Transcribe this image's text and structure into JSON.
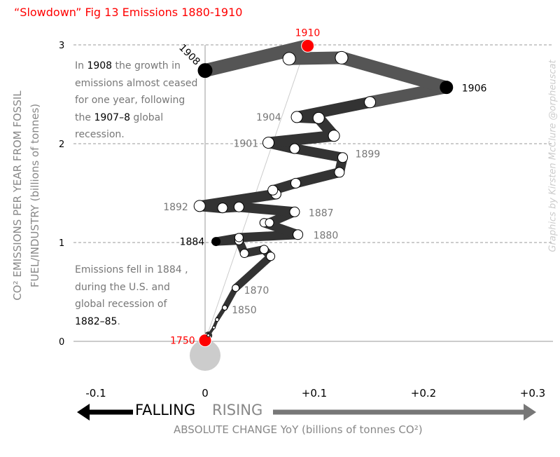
{
  "title": "“Slowdown” Fig 13 Emissions 1880-1910",
  "credit": "Graphics by Kirsten McClure @orpheuscat",
  "annotations": {
    "a1": [
      "In ",
      "1908",
      " the growth in",
      "emissions almost ceased",
      "for one year, following",
      "the ",
      "1907–8",
      " global",
      "recession."
    ],
    "a2": [
      "Emissions fell in 1884 ,",
      "during the U.S. and",
      "global recession of",
      "1882–85",
      "."
    ]
  },
  "direction": {
    "falling": "FALLING",
    "rising": "RISING"
  },
  "chart_data": {
    "type": "line",
    "title": "“Slowdown” Fig 13 Emissions 1880-1910",
    "xlabel": "ABSOLUTE CHANGE YoY (billions of tonnes CO²)",
    "ylabel": [
      "CO² EMISSIONS PER YEAR FROM FOSSIL",
      "FUEL/INDUSTRY (billions of tonnes)"
    ],
    "xlim": [
      -0.1,
      0.3
    ],
    "ylim": [
      0,
      3
    ],
    "xticks": [
      {
        "v": -0.1,
        "label": "-0.1"
      },
      {
        "v": 0,
        "label": "0"
      },
      {
        "v": 0.1,
        "label": "+0.1"
      },
      {
        "v": 0.2,
        "label": "+0.2"
      },
      {
        "v": 0.3,
        "label": "+0.3"
      }
    ],
    "yticks": [
      {
        "v": 0,
        "label": "0"
      },
      {
        "v": 1,
        "label": "1"
      },
      {
        "v": 2,
        "label": "2"
      },
      {
        "v": 3,
        "label": "3"
      }
    ],
    "grid": "dashed horizontal",
    "points": [
      {
        "x": 0.0,
        "y": 0.01,
        "label": "1750",
        "fill": "#ff0000",
        "r": 9
      },
      {
        "x": 0.003,
        "y": 0.06,
        "r": 2
      },
      {
        "x": 0.008,
        "y": 0.14,
        "r": 2
      },
      {
        "x": 0.011,
        "y": 0.22,
        "r": 2.5
      },
      {
        "x": 0.018,
        "y": 0.34,
        "label": "1850",
        "r": 3.5
      },
      {
        "x": 0.028,
        "y": 0.54,
        "label": "1870",
        "r": 5
      },
      {
        "x": 0.06,
        "y": 0.86,
        "r": 6
      },
      {
        "x": 0.054,
        "y": 0.93,
        "r": 6
      },
      {
        "x": 0.036,
        "y": 0.89,
        "r": 6
      },
      {
        "x": 0.031,
        "y": 1.02,
        "r": 6
      },
      {
        "x": 0.01,
        "y": 1.01,
        "label": "1884",
        "fill": "#000000",
        "r": 6
      },
      {
        "x": 0.031,
        "y": 1.05,
        "r": 6
      },
      {
        "x": 0.085,
        "y": 1.08,
        "label": "1880",
        "r": 7
      },
      {
        "x": 0.054,
        "y": 1.2,
        "r": 6
      },
      {
        "x": 0.059,
        "y": 1.2,
        "r": 6
      },
      {
        "x": 0.082,
        "y": 1.31,
        "label": "1887",
        "r": 7
      },
      {
        "x": 0.031,
        "y": 1.36,
        "r": 7
      },
      {
        "x": 0.016,
        "y": 1.35,
        "r": 7
      },
      {
        "x": -0.005,
        "y": 1.37,
        "label": "1892",
        "r": 8
      },
      {
        "x": 0.065,
        "y": 1.49,
        "r": 7
      },
      {
        "x": 0.062,
        "y": 1.53,
        "r": 7
      },
      {
        "x": 0.083,
        "y": 1.6,
        "r": 7
      },
      {
        "x": 0.123,
        "y": 1.71,
        "r": 7
      },
      {
        "x": 0.126,
        "y": 1.86,
        "label": "1899",
        "r": 7
      },
      {
        "x": 0.082,
        "y": 1.95,
        "r": 7
      },
      {
        "x": 0.058,
        "y": 2.01,
        "label": "1901",
        "r": 8
      },
      {
        "x": 0.118,
        "y": 2.08,
        "r": 8
      },
      {
        "x": 0.104,
        "y": 2.26,
        "r": 8
      },
      {
        "x": 0.084,
        "y": 2.27,
        "label": "1904",
        "r": 8
      },
      {
        "x": 0.151,
        "y": 2.42,
        "r": 8
      },
      {
        "x": 0.221,
        "y": 2.57,
        "label": "1906",
        "fill": "#000000",
        "r": 9
      },
      {
        "x": 0.125,
        "y": 2.87,
        "r": 9
      },
      {
        "x": 0.077,
        "y": 2.86,
        "r": 9
      },
      {
        "x": 0.094,
        "y": 2.99,
        "label": "1910",
        "fill": "#ff0000",
        "r": 9
      },
      {
        "x": 0.0,
        "y": 2.74,
        "label": "1908",
        "fill": "#000000",
        "r": 10
      }
    ]
  }
}
